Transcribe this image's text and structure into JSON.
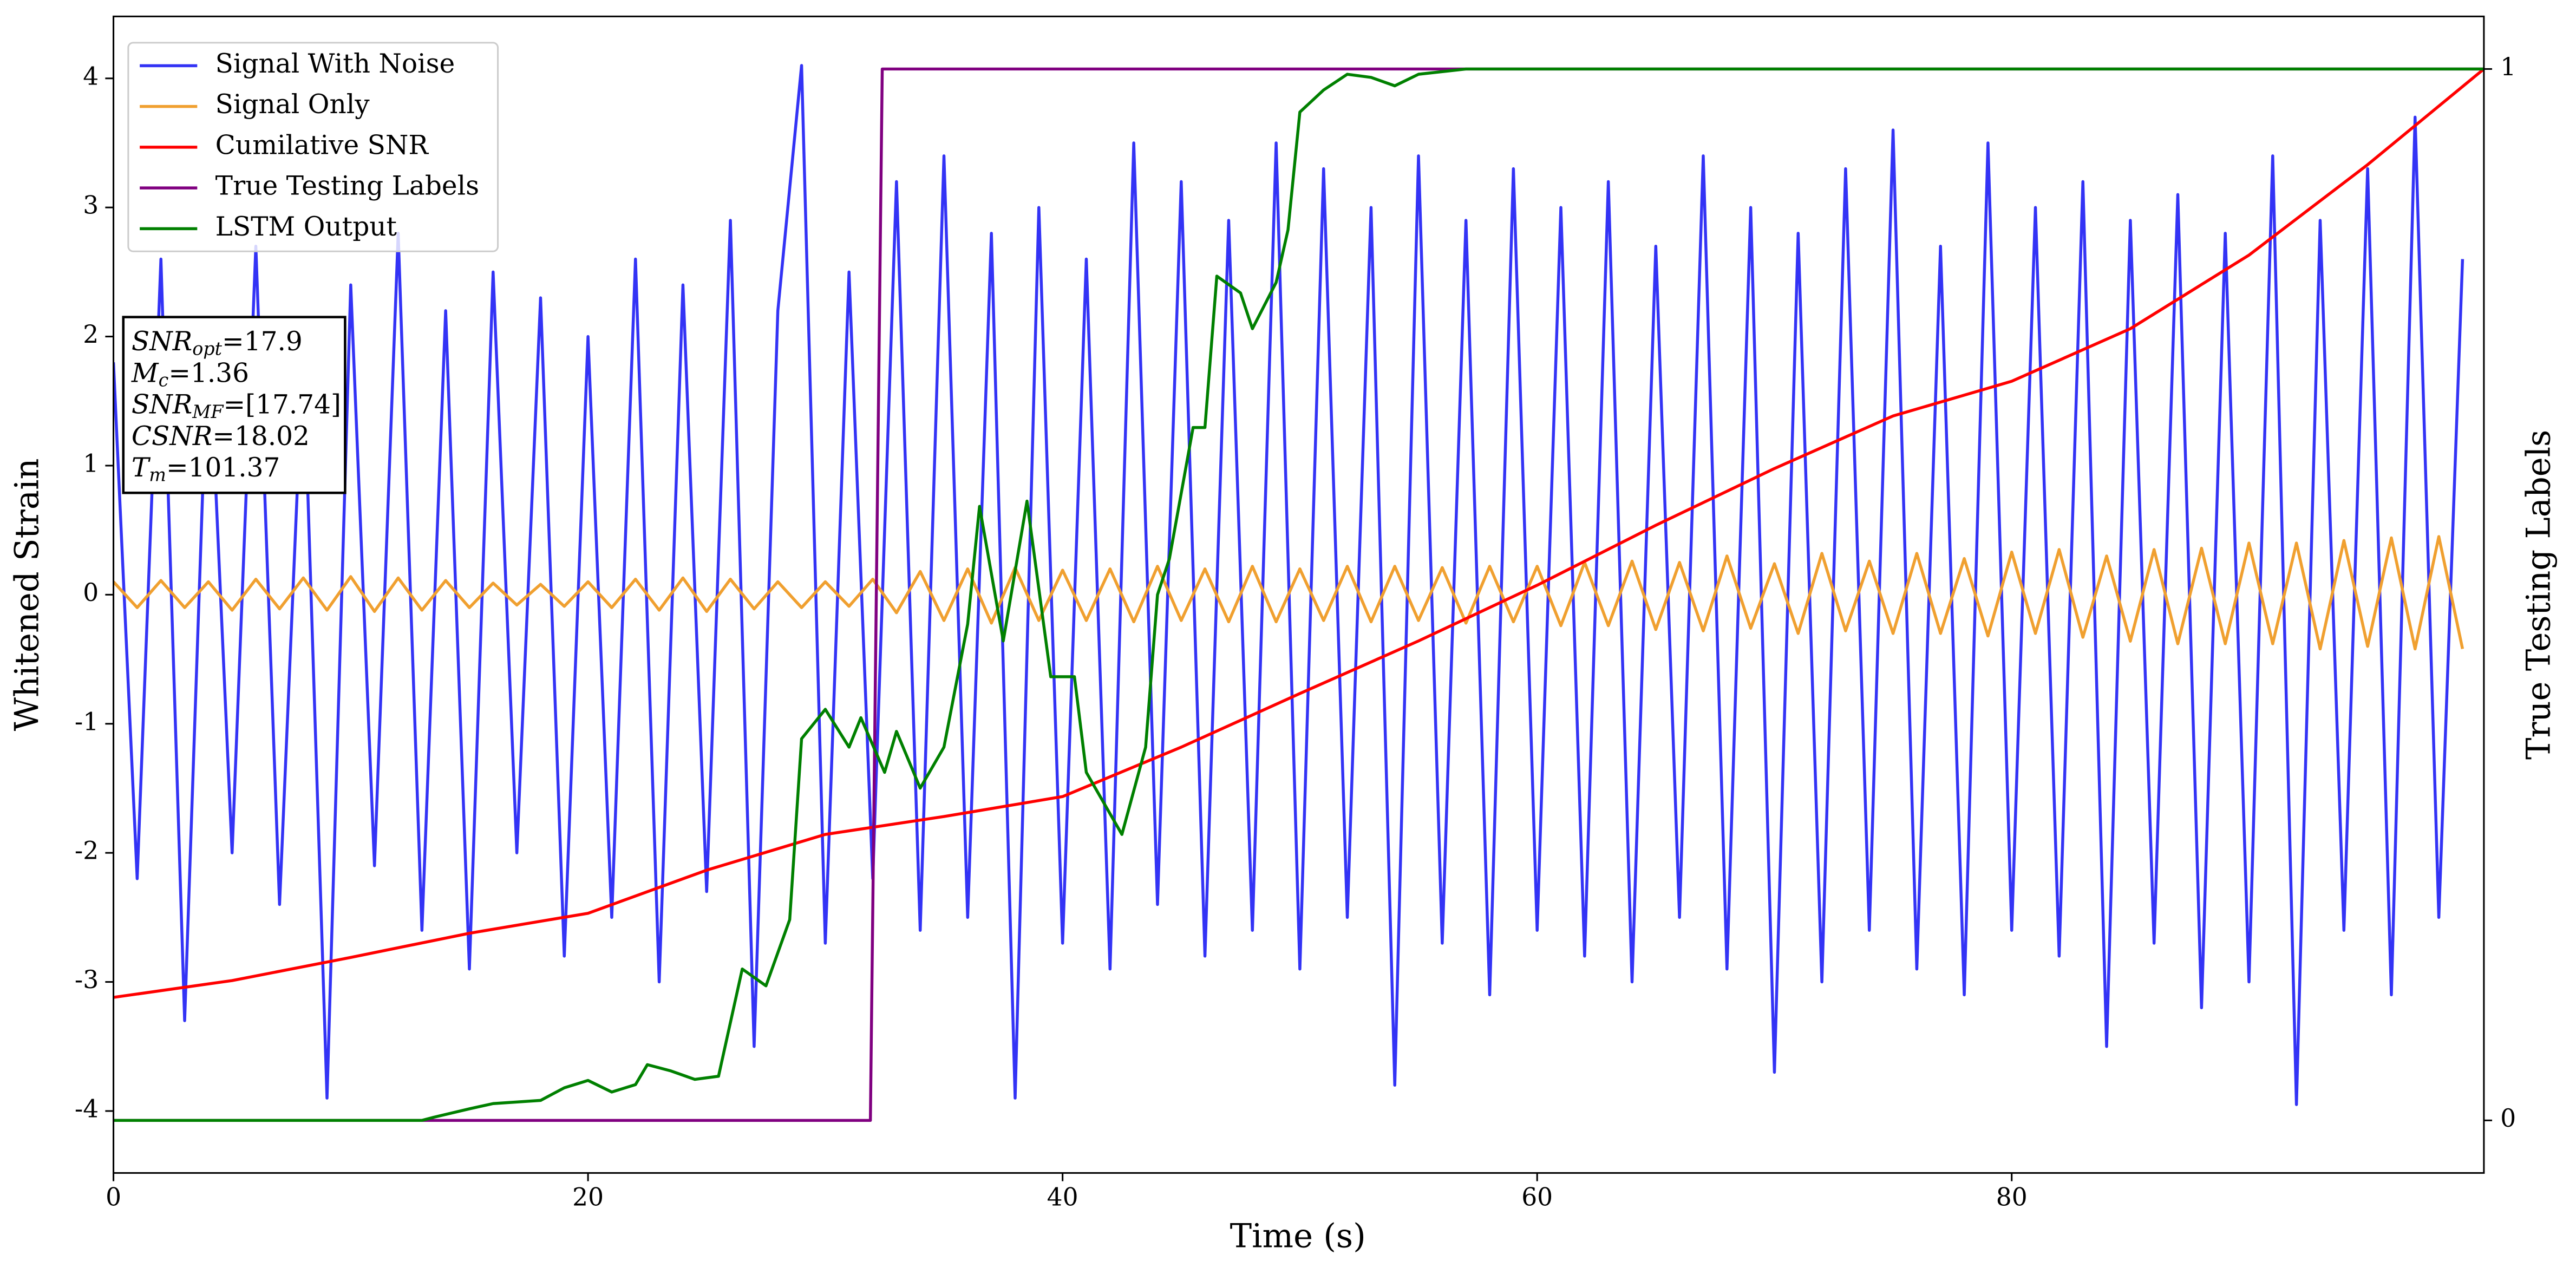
{
  "chart_data": {
    "type": "line",
    "xlabel": "Time (s)",
    "ylabel": "Whitened Strain",
    "y2label": "True Testing Labels",
    "xlim": [
      0,
      99.9
    ],
    "ylim": [
      -4.48,
      4.48
    ],
    "y2lim": [
      -0.05,
      1.05
    ],
    "xticks": [
      0,
      20,
      40,
      60,
      80
    ],
    "yticks": [
      -4,
      -3,
      -2,
      -1,
      0,
      1,
      2,
      3,
      4
    ],
    "y2ticks": [
      0,
      1
    ],
    "legend": "upper left",
    "x": [
      0,
      1,
      2,
      3,
      4,
      5,
      6,
      7,
      8,
      9,
      10,
      11,
      12,
      13,
      14,
      15,
      16,
      17,
      18,
      19,
      20,
      21,
      22,
      23,
      24,
      25,
      26,
      27,
      28,
      29,
      30,
      31,
      32,
      33,
      34,
      35,
      36,
      37,
      38,
      39,
      40,
      41,
      42,
      43,
      44,
      45,
      46,
      47,
      48,
      49,
      50,
      51,
      52,
      53,
      54,
      55,
      56,
      57,
      58,
      59,
      60,
      61,
      62,
      63,
      64,
      65,
      66,
      67,
      68,
      69,
      70,
      71,
      72,
      73,
      74,
      75,
      76,
      77,
      78,
      79,
      80,
      81,
      82,
      83,
      84,
      85,
      86,
      87,
      88,
      89,
      90,
      91,
      92,
      93,
      94,
      95,
      96,
      97,
      98,
      99
    ],
    "series": [
      {
        "name": "Signal With Noise",
        "color": "#3333f5",
        "values": [
          1.8,
          -2.2,
          2.6,
          -3.3,
          2.1,
          -2.0,
          2.7,
          -2.4,
          1.9,
          -3.9,
          2.4,
          -2.1,
          2.8,
          -2.6,
          2.2,
          -2.9,
          2.5,
          -2.0,
          2.3,
          -2.8,
          2.0,
          -2.5,
          2.6,
          -3.0,
          2.4,
          -2.3,
          2.9,
          -3.5,
          2.2,
          4.1,
          -2.7,
          2.5,
          -2.2,
          3.2,
          -2.6,
          3.4,
          -2.5,
          2.8,
          -3.9,
          3.0,
          -2.7,
          2.6,
          -2.9,
          3.5,
          -2.4,
          3.2,
          -2.8,
          2.9,
          -2.6,
          3.5,
          -2.9,
          3.3,
          -2.5,
          3.0,
          -3.8,
          3.4,
          -2.7,
          2.9,
          -3.1,
          3.3,
          -2.6,
          3.0,
          -2.8,
          3.2,
          -3.0,
          2.7,
          -2.5,
          3.4,
          -2.9,
          3.0,
          -3.7,
          2.8,
          -3.0,
          3.3,
          -2.6,
          3.6,
          -2.9,
          2.7,
          -3.1,
          3.5,
          -2.6,
          3.0,
          -2.8,
          3.2,
          -3.5,
          2.9,
          -2.7,
          3.1,
          -3.2,
          2.8,
          -3.0,
          3.4,
          -3.95,
          2.9,
          -2.6,
          3.3,
          -3.1,
          3.7,
          -2.5,
          2.6
        ]
      },
      {
        "name": "Signal Only",
        "color": "#f0a030",
        "values": [
          0.1,
          -0.1,
          0.11,
          -0.1,
          0.1,
          -0.12,
          0.12,
          -0.11,
          0.13,
          -0.12,
          0.14,
          -0.13,
          0.13,
          -0.12,
          0.11,
          -0.1,
          0.09,
          -0.08,
          0.08,
          -0.09,
          0.1,
          -0.1,
          0.12,
          -0.12,
          0.13,
          -0.13,
          0.12,
          -0.11,
          0.1,
          -0.1,
          0.1,
          -0.09,
          0.12,
          -0.14,
          0.18,
          -0.2,
          0.2,
          -0.22,
          0.21,
          -0.2,
          0.19,
          -0.2,
          0.2,
          -0.21,
          0.22,
          -0.2,
          0.2,
          -0.21,
          0.22,
          -0.21,
          0.2,
          -0.2,
          0.22,
          -0.21,
          0.22,
          -0.2,
          0.21,
          -0.22,
          0.22,
          -0.21,
          0.22,
          -0.24,
          0.25,
          -0.24,
          0.26,
          -0.27,
          0.25,
          -0.28,
          0.3,
          -0.26,
          0.24,
          -0.3,
          0.32,
          -0.28,
          0.26,
          -0.3,
          0.32,
          -0.3,
          0.28,
          -0.32,
          0.33,
          -0.3,
          0.35,
          -0.33,
          0.3,
          -0.36,
          0.35,
          -0.38,
          0.36,
          -0.38,
          0.4,
          -0.38,
          0.4,
          -0.42,
          0.42,
          -0.4,
          0.44,
          -0.42,
          0.45,
          -0.42
        ]
      },
      {
        "name": "Cumilative SNR",
        "color": "#ff0000",
        "axis": "y2",
        "x": [
          0,
          5,
          10,
          15,
          20,
          25,
          30,
          35,
          40,
          45,
          50,
          55,
          60,
          65,
          70,
          75,
          80,
          85,
          90,
          95,
          99.9
        ],
        "values": [
          0.117,
          0.133,
          0.155,
          0.178,
          0.197,
          0.238,
          0.272,
          0.289,
          0.308,
          0.355,
          0.406,
          0.456,
          0.509,
          0.566,
          0.62,
          0.67,
          0.703,
          0.753,
          0.823,
          0.909,
          1.0
        ]
      },
      {
        "name": "True Testing Labels",
        "color": "#800080",
        "axis": "y2",
        "x": [
          0,
          31.9,
          32.4,
          99.9
        ],
        "values": [
          0,
          0,
          1,
          1
        ]
      },
      {
        "name": "LSTM Output",
        "color": "#008000",
        "axis": "y2",
        "x": [
          0,
          13,
          13.5,
          15,
          16,
          18,
          19,
          20,
          21,
          22,
          22.5,
          23.5,
          24.5,
          25.5,
          26.5,
          27.5,
          28.5,
          29,
          30,
          31,
          31.5,
          32.5,
          33,
          34,
          35,
          36,
          36.5,
          37.5,
          38.5,
          39.5,
          40.5,
          41,
          42.5,
          43.5,
          44,
          44.5,
          45.5,
          46,
          46.5,
          47.5,
          48,
          49,
          49.5,
          50,
          51,
          52,
          53,
          54,
          55,
          57,
          60,
          99.9
        ],
        "values": [
          0,
          0,
          0.003,
          0.011,
          0.016,
          0.019,
          0.031,
          0.038,
          0.027,
          0.034,
          0.053,
          0.047,
          0.039,
          0.042,
          0.144,
          0.128,
          0.191,
          0.363,
          0.391,
          0.355,
          0.383,
          0.331,
          0.37,
          0.316,
          0.355,
          0.472,
          0.584,
          0.456,
          0.589,
          0.422,
          0.422,
          0.331,
          0.272,
          0.355,
          0.5,
          0.534,
          0.659,
          0.659,
          0.803,
          0.787,
          0.753,
          0.797,
          0.847,
          0.959,
          0.98,
          0.995,
          0.992,
          0.984,
          0.995,
          1.0,
          1.0,
          1.0
        ]
      }
    ],
    "annotation": [
      {
        "text": "SNR",
        "sub": "opt",
        "rest": "=17.9"
      },
      {
        "text": "M",
        "sub": "c",
        "rest": "=1.36"
      },
      {
        "text": "SNR",
        "sub": "MF",
        "rest": "=[17.74]"
      },
      {
        "text": "CSNR",
        "rest": "=18.02"
      },
      {
        "text": "T",
        "sub": "m",
        "rest": "=101.37"
      }
    ]
  }
}
